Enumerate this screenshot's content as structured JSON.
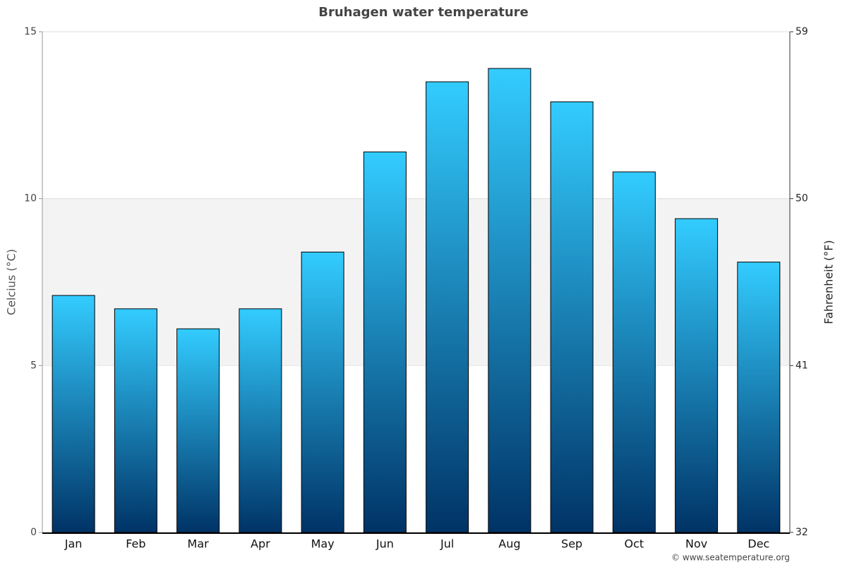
{
  "chart_data": {
    "type": "bar",
    "title": "Bruhagen water temperature",
    "y_label": "Celcius (°C)",
    "y2_label": "Fahrenheit (°F)",
    "categories": [
      "Jan",
      "Feb",
      "Mar",
      "Apr",
      "May",
      "Jun",
      "Jul",
      "Aug",
      "Sep",
      "Oct",
      "Nov",
      "Dec"
    ],
    "values": [
      7.1,
      6.7,
      6.1,
      6.7,
      8.4,
      11.4,
      13.5,
      13.9,
      12.9,
      10.8,
      9.4,
      8.1
    ],
    "color": [
      "#33ccff",
      "#003366"
    ],
    "ylim": [
      0,
      15
    ],
    "yticks": [
      0,
      5,
      10,
      15
    ],
    "y2lim": [
      32,
      59
    ],
    "y2ticks": [
      32,
      41,
      50,
      59
    ],
    "grid": true,
    "source": "© www.seatemperature.org"
  }
}
